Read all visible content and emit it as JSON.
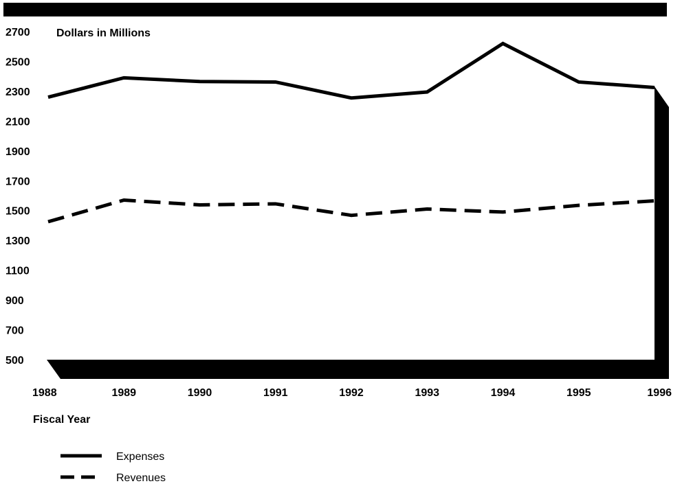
{
  "chart_data": {
    "type": "line",
    "title": "",
    "ylabel": "Dollars in Millions",
    "xlabel": "Fiscal Year",
    "ylim": [
      500,
      2700
    ],
    "y_ticks": [
      "2700",
      "2500",
      "2300",
      "2100",
      "1900",
      "1700",
      "1500",
      "1300",
      "1100",
      "900",
      "700",
      "500"
    ],
    "y_tick_values": [
      2700,
      2500,
      2300,
      2100,
      1900,
      1700,
      1500,
      1300,
      1100,
      900,
      700,
      500
    ],
    "categories": [
      "1988",
      "1989",
      "1990",
      "1991",
      "1992",
      "1993",
      "1994",
      "1995",
      "1996"
    ],
    "series": [
      {
        "name": "Expenses",
        "style": "solid",
        "values": [
          2260,
          2390,
          2365,
          2362,
          2255,
          2295,
          2620,
          2362,
          2325
        ]
      },
      {
        "name": "Revenues",
        "style": "dashed",
        "values": [
          1425,
          1570,
          1538,
          1545,
          1468,
          1510,
          1490,
          1535,
          1565
        ]
      }
    ],
    "legend_position": "bottom-left",
    "grid": false,
    "colors": {
      "line": "#000000",
      "frame": "#000000",
      "background": "#ffffff"
    }
  }
}
